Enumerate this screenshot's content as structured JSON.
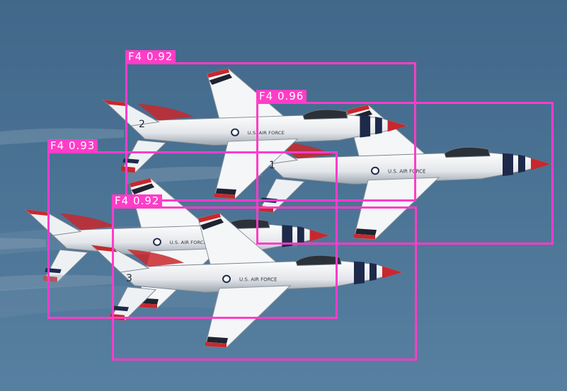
{
  "image": {
    "description_tag": "formation of four jet aircraft with object-detection overlays",
    "sky_color": "#4a7294",
    "box_color": "#ff3dc8"
  },
  "detections": [
    {
      "label": "F4 0.92",
      "class": "F4",
      "confidence": 0.92
    },
    {
      "label": "F4 0.96",
      "class": "F4",
      "confidence": 0.96
    },
    {
      "label": "F4 0.93",
      "class": "F4",
      "confidence": 0.93
    },
    {
      "label": "F4 0.92",
      "class": "F4",
      "confidence": 0.92
    }
  ],
  "markings": {
    "tail_numbers": [
      "2",
      "1",
      "3"
    ]
  }
}
